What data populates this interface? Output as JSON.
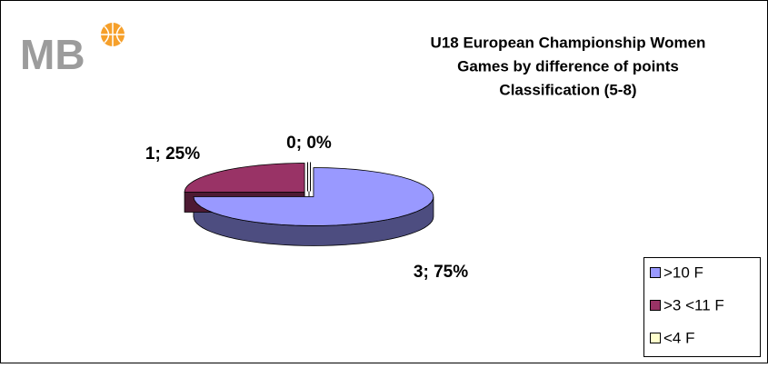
{
  "logo": "MB",
  "chart_data": {
    "type": "pie3d",
    "title": [
      "U18 European Championship Women",
      "Games by difference of points",
      "Classification (5-8)"
    ],
    "categories": [
      ">10 F",
      ">3 <11 F",
      "<4 F"
    ],
    "values": [
      3,
      1,
      0
    ],
    "value_labels": [
      "3; 75%",
      "1; 25%",
      "0; 0%"
    ],
    "colors": [
      "#9999ff",
      "#993366",
      "#ffffcc"
    ],
    "legend": "right"
  }
}
